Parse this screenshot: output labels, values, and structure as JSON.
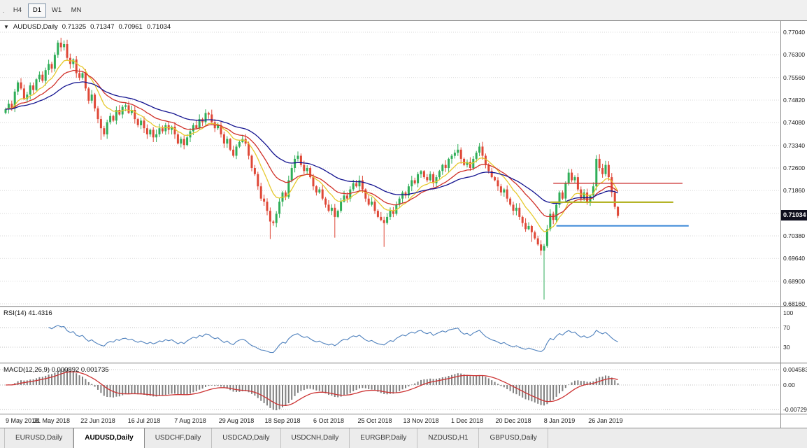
{
  "toolbar": {
    "overflow_label": ".",
    "timeframes": [
      {
        "label": "H4",
        "active": false
      },
      {
        "label": "D1",
        "active": true
      },
      {
        "label": "W1",
        "active": false
      },
      {
        "label": "MN",
        "active": false
      }
    ]
  },
  "chart_header": {
    "marker": "▼",
    "symbol": "AUDUSD,Daily",
    "open": "0.71325",
    "high": "0.71347",
    "low": "0.70961",
    "close": "0.71034"
  },
  "price_badge": {
    "label": "0.71034",
    "bg": "#0f0f1e",
    "fg": "#ffffff"
  },
  "rsi_panel": {
    "label": "RSI(14) 41.4316"
  },
  "macd_panel": {
    "label": "MACD(12,26,9) 0.000892 0.001735"
  },
  "bottom_tabs": {
    "items": [
      {
        "label": "EURUSD,Daily",
        "active": false
      },
      {
        "label": "AUDUSD,Daily",
        "active": true
      },
      {
        "label": "USDCHF,Daily",
        "active": false
      },
      {
        "label": "USDCAD,Daily",
        "active": false
      },
      {
        "label": "USDCNH,Daily",
        "active": false
      },
      {
        "label": "EURGBP,Daily",
        "active": false
      },
      {
        "label": "NZDUSD,H1",
        "active": false
      },
      {
        "label": "GBPUSD,Daily",
        "active": false
      }
    ]
  },
  "chart_data": {
    "type": "candlestick",
    "title": "AUDUSD,Daily",
    "x_axis_dates": [
      "9 May 2018",
      "31 May 2018",
      "22 Jun 2018",
      "16 Jul 2018",
      "7 Aug 2018",
      "29 Aug 2018",
      "18 Sep 2018",
      "6 Oct 2018",
      "25 Oct 2018",
      "13 Nov 2018",
      "1 Dec 2018",
      "20 Dec 2018",
      "8 Jan 2019",
      "26 Jan 2019"
    ],
    "bars_per_label": 15,
    "price_axis": {
      "top": 0.7704,
      "bottom": 0.6816,
      "gridlines": [
        0.7704,
        0.763,
        0.7556,
        0.7482,
        0.7408,
        0.7334,
        0.726,
        0.7186,
        0.7112,
        0.7038,
        0.6964,
        0.689,
        0.6816
      ],
      "gridline_labels": [
        "0.77040",
        "0.76300",
        "0.75560",
        "0.74820",
        "0.74080",
        "0.73340",
        "0.72600",
        "0.71860",
        "0.71120",
        "0.70380",
        "0.69640",
        "0.68900",
        "0.68160"
      ]
    },
    "first_open": 0.744,
    "closes": [
      0.7452,
      0.747,
      0.7455,
      0.751,
      0.754,
      0.752,
      0.7485,
      0.75,
      0.753,
      0.7515,
      0.755,
      0.7565,
      0.7545,
      0.758,
      0.76,
      0.7585,
      0.763,
      0.767,
      0.7655,
      0.7665,
      0.762,
      0.76,
      0.7615,
      0.757,
      0.7555,
      0.757,
      0.752,
      0.748,
      0.75,
      0.7455,
      0.742,
      0.739,
      0.737,
      0.741,
      0.743,
      0.7415,
      0.745,
      0.7435,
      0.746,
      0.7465,
      0.744,
      0.745,
      0.742,
      0.74,
      0.7415,
      0.739,
      0.737,
      0.7385,
      0.736,
      0.737,
      0.739,
      0.738,
      0.74,
      0.7385,
      0.7395,
      0.737,
      0.734,
      0.7355,
      0.7335,
      0.736,
      0.738,
      0.74,
      0.739,
      0.742,
      0.741,
      0.744,
      0.7435,
      0.741,
      0.739,
      0.74,
      0.737,
      0.734,
      0.7355,
      0.732,
      0.73,
      0.733,
      0.7345,
      0.7355,
      0.734,
      0.73,
      0.726,
      0.724,
      0.72,
      0.716,
      0.715,
      0.712,
      0.7085,
      0.708,
      0.711,
      0.715,
      0.718,
      0.7165,
      0.722,
      0.726,
      0.729,
      0.73,
      0.727,
      0.725,
      0.726,
      0.723,
      0.72,
      0.718,
      0.719,
      0.716,
      0.714,
      0.712,
      0.713,
      0.71,
      0.712,
      0.715,
      0.717,
      0.716,
      0.719,
      0.721,
      0.72,
      0.722,
      0.719,
      0.716,
      0.714,
      0.715,
      0.712,
      0.71,
      0.709,
      0.708,
      0.71,
      0.712,
      0.711,
      0.714,
      0.716,
      0.718,
      0.717,
      0.72,
      0.722,
      0.721,
      0.724,
      0.725,
      0.723,
      0.722,
      0.724,
      0.721,
      0.723,
      0.725,
      0.727,
      0.726,
      0.729,
      0.73,
      0.731,
      0.732,
      0.729,
      0.727,
      0.728,
      0.726,
      0.729,
      0.731,
      0.733,
      0.73,
      0.727,
      0.725,
      0.723,
      0.722,
      0.72,
      0.718,
      0.719,
      0.716,
      0.714,
      0.712,
      0.713,
      0.71,
      0.708,
      0.706,
      0.707,
      0.705,
      0.703,
      0.701,
      0.699,
      0.7005,
      0.706,
      0.711,
      0.709,
      0.714,
      0.718,
      0.716,
      0.721,
      0.7245,
      0.722,
      0.723,
      0.719,
      0.716,
      0.718,
      0.715,
      0.717,
      0.72,
      0.729,
      0.726,
      0.724,
      0.727,
      0.723,
      0.718,
      0.7133,
      0.71034
    ],
    "extremes": {
      "17": {
        "high": 0.7678
      },
      "31": {
        "low": 0.7352
      },
      "86": {
        "low": 0.7028
      },
      "107": {
        "low": 0.7032
      },
      "123": {
        "low": 0.7002
      },
      "147": {
        "high": 0.7338
      },
      "154": {
        "high": 0.7342
      },
      "171": {
        "low": 0.7018
      },
      "175": {
        "low": 0.683,
        "high": 0.7012
      },
      "192": {
        "high": 0.7302
      },
      "199": {
        "high": 0.71347,
        "low": 0.70961
      }
    },
    "candle_colors": {
      "up": "#2fae58",
      "down": "#df4837"
    },
    "moving_averages": [
      {
        "period": 10,
        "color": "#e6c92e"
      },
      {
        "period": 20,
        "color": "#d03028"
      },
      {
        "period": 40,
        "color": "#12128f"
      }
    ],
    "hlines": [
      {
        "price": 0.721,
        "from_bar": 178,
        "to_bar": 220,
        "color": "#cc3333",
        "width": 1.4
      },
      {
        "price": 0.7148,
        "from_bar": 177,
        "to_bar": 217,
        "color": "#b5b428",
        "width": 2.2
      },
      {
        "price": 0.7071,
        "from_bar": 179,
        "to_bar": 222,
        "color": "#3584d6",
        "width": 2
      }
    ],
    "last_price": 0.71034,
    "indicators": {
      "rsi": {
        "period": 14,
        "color": "#4f81bd",
        "current": 41.4316,
        "levels": [
          70,
          30
        ],
        "scale_labels": [
          "100",
          "70",
          "30"
        ],
        "scale_values": [
          100,
          70,
          30
        ]
      },
      "macd": {
        "fast": 12,
        "slow": 26,
        "signal": 9,
        "current_macd": 0.000892,
        "current_signal": 0.001735,
        "histogram_color": "#808080",
        "signal_color": "#cc3333",
        "scale_labels": [
          "0.004583",
          "0.00",
          "-0.00729"
        ],
        "scale_values": [
          0.004583,
          0,
          -0.00729
        ]
      }
    }
  }
}
